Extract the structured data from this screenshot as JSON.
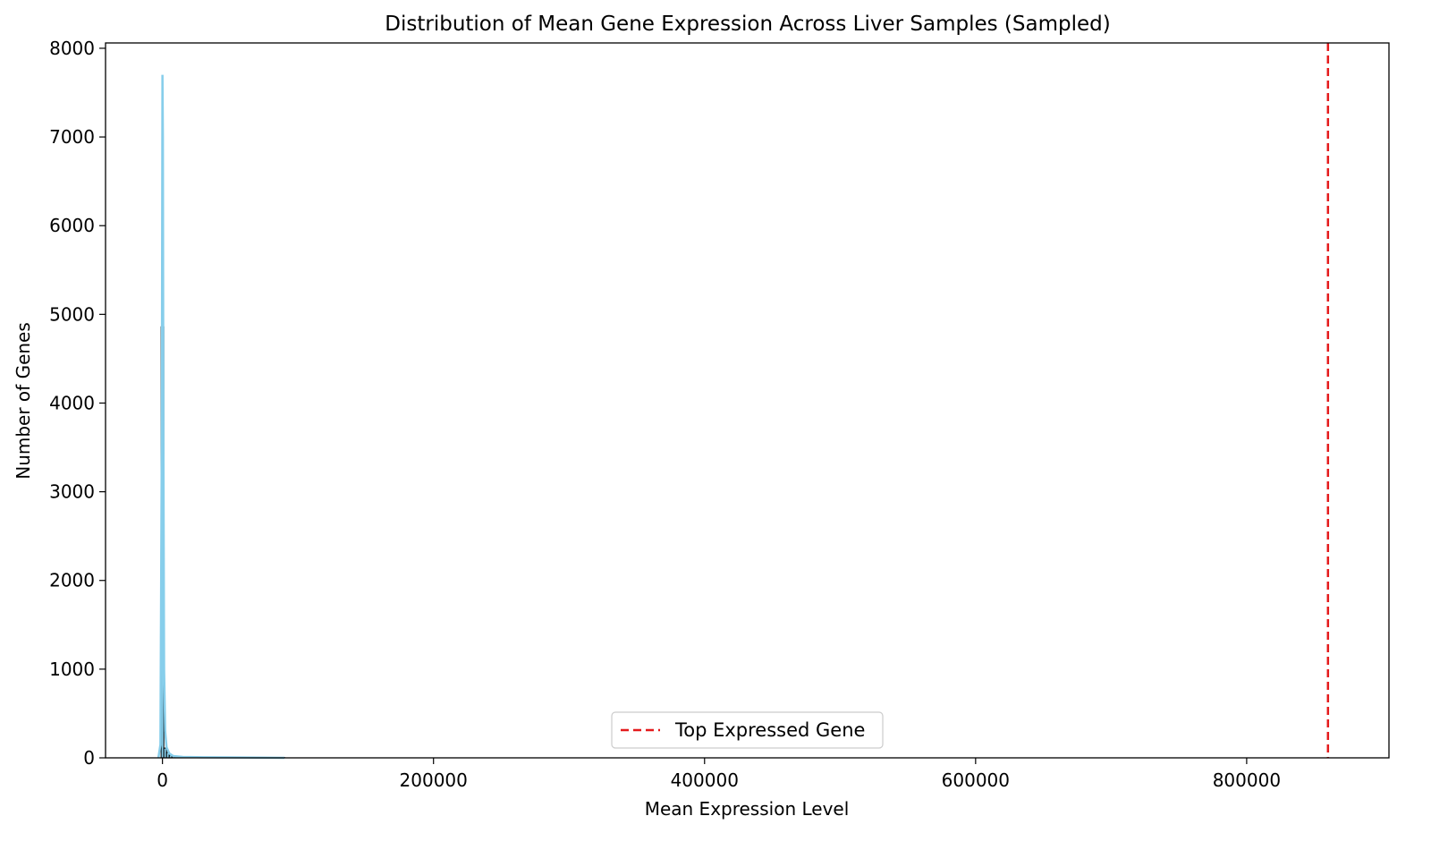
{
  "chart_data": {
    "type": "bar",
    "title": "Distribution of Mean Gene Expression Across Liver Samples (Sampled)",
    "xlabel": "Mean Expression Level",
    "ylabel": "Number of Genes",
    "xlim": [
      -42000,
      905000
    ],
    "ylim": [
      0,
      8060
    ],
    "xticks": [
      0,
      200000,
      400000,
      600000,
      800000
    ],
    "xtick_labels": [
      "0",
      "200000",
      "400000",
      "600000",
      "800000"
    ],
    "yticks": [
      0,
      1000,
      2000,
      3000,
      4000,
      5000,
      6000,
      7000,
      8000
    ],
    "ytick_labels": [
      "0",
      "1000",
      "2000",
      "3000",
      "4000",
      "5000",
      "6000",
      "7000",
      "8000"
    ],
    "grid": false,
    "bar_color": "#87ceeb",
    "edge_color": "#000000",
    "kde_color": "#87ceeb",
    "bins": [
      {
        "x0": -1000,
        "x1": 1000,
        "count": 4860
      },
      {
        "x0": 1000,
        "x1": 3000,
        "count": 110
      },
      {
        "x0": 3000,
        "x1": 5000,
        "count": 60
      },
      {
        "x0": 5000,
        "x1": 7000,
        "count": 30
      },
      {
        "x0": 7000,
        "x1": 9000,
        "count": 15
      },
      {
        "x0": 9000,
        "x1": 20000,
        "count": 8
      },
      {
        "x0": 20000,
        "x1": 90000,
        "count": 5
      }
    ],
    "kde": {
      "x": [
        -3000,
        -1500,
        -500,
        0,
        300,
        700,
        1200,
        2000,
        3000,
        5000,
        8000,
        15000,
        30000,
        60000,
        90000
      ],
      "y": [
        0,
        150,
        3500,
        7700,
        7000,
        3500,
        1000,
        300,
        120,
        50,
        20,
        10,
        6,
        4,
        0
      ]
    },
    "reference_line": {
      "x": 860000,
      "color": "#e41a1c",
      "style": "dashed"
    },
    "legend": {
      "placement": "lower-center",
      "entries": [
        {
          "label": "Top Expressed Gene",
          "color": "#e41a1c",
          "style": "dashed"
        }
      ]
    }
  }
}
